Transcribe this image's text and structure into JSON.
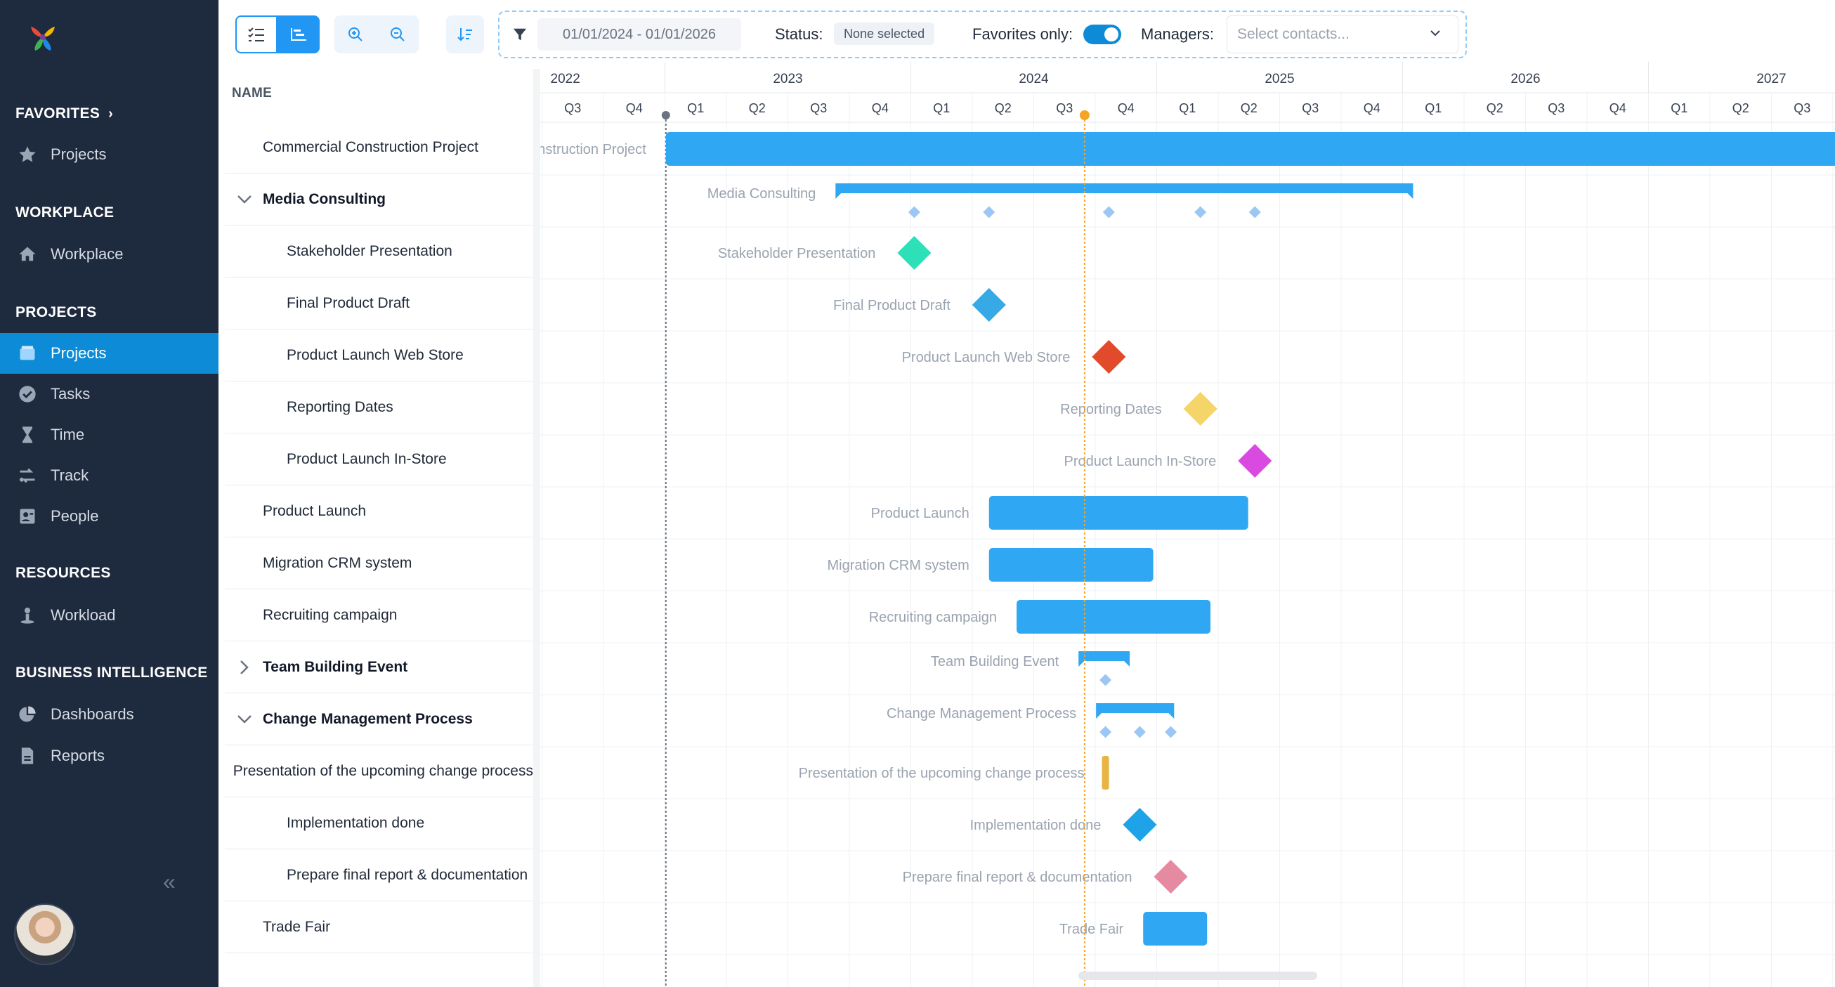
{
  "sidebar": {
    "sections": [
      {
        "title": "FAVORITES",
        "items": [
          {
            "label": "Projects",
            "icon": "star-icon"
          }
        ]
      },
      {
        "title": "WORKPLACE",
        "items": [
          {
            "label": "Workplace",
            "icon": "home-icon"
          }
        ]
      },
      {
        "title": "PROJECTS",
        "items": [
          {
            "label": "Projects",
            "icon": "folder-icon",
            "active": true
          },
          {
            "label": "Tasks",
            "icon": "check-circle-icon"
          },
          {
            "label": "Time",
            "icon": "hourglass-icon"
          },
          {
            "label": "Track",
            "icon": "track-icon"
          },
          {
            "label": "People",
            "icon": "contact-card-icon"
          }
        ]
      },
      {
        "title": "RESOURCES",
        "items": [
          {
            "label": "Workload",
            "icon": "workload-icon"
          }
        ]
      },
      {
        "title": "BUSINESS INTELLIGENCE",
        "items": [
          {
            "label": "Dashboards",
            "icon": "pie-chart-icon"
          },
          {
            "label": "Reports",
            "icon": "report-icon"
          }
        ]
      }
    ],
    "collapse_glyph": "«"
  },
  "toolbar": {
    "date_range": "01/01/2024 - 01/01/2026",
    "status_label": "Status:",
    "status_value": "None selected",
    "favorites_label": "Favorites only:",
    "favorites_only": true,
    "managers_label": "Managers:",
    "managers_placeholder": "Select contacts..."
  },
  "grid": {
    "name_header": "NAME",
    "rows": [
      {
        "name": "Commercial Construction Project",
        "level": 0,
        "toggle": ""
      },
      {
        "name": "Media Consulting",
        "level": 0,
        "toggle": "expanded",
        "bold": true
      },
      {
        "name": "Stakeholder Presentation",
        "level": 1,
        "toggle": ""
      },
      {
        "name": "Final Product Draft",
        "level": 1,
        "toggle": ""
      },
      {
        "name": "Product Launch Web Store",
        "level": 1,
        "toggle": ""
      },
      {
        "name": "Reporting Dates",
        "level": 1,
        "toggle": ""
      },
      {
        "name": "Product Launch In-Store",
        "level": 1,
        "toggle": ""
      },
      {
        "name": "Product Launch",
        "level": 0,
        "toggle": ""
      },
      {
        "name": "Migration CRM system",
        "level": 0,
        "toggle": ""
      },
      {
        "name": "Recruiting campaign",
        "level": 0,
        "toggle": ""
      },
      {
        "name": "Team Building Event",
        "level": 0,
        "toggle": "collapsed",
        "bold": true
      },
      {
        "name": "Change Management Process",
        "level": 0,
        "toggle": "expanded",
        "bold": true
      },
      {
        "name": "Presentation of the upcoming change process",
        "level": 1,
        "toggle": ""
      },
      {
        "name": "Implementation done",
        "level": 1,
        "toggle": ""
      },
      {
        "name": "Prepare final report & documentation",
        "level": 1,
        "toggle": ""
      },
      {
        "name": "Trade Fair",
        "level": 0,
        "toggle": ""
      }
    ]
  },
  "timeline": {
    "years": [
      {
        "label": "2022",
        "first_q": 3
      },
      {
        "label": "2023",
        "first_q": 1
      },
      {
        "label": "2024",
        "first_q": 1
      },
      {
        "label": "2025",
        "first_q": 1
      },
      {
        "label": "2026",
        "first_q": 1
      },
      {
        "label": "2027",
        "first_q": 1
      }
    ],
    "quarter_labels": [
      "Q3",
      "Q4",
      "Q1",
      "Q2",
      "Q3",
      "Q4",
      "Q1",
      "Q2",
      "Q3",
      "Q4",
      "Q1",
      "Q2",
      "Q3",
      "Q4",
      "Q1",
      "Q2",
      "Q3",
      "Q4",
      "Q1",
      "Q2",
      "Q3"
    ],
    "start_marker": "2023-01-01",
    "today_marker": "2024-09-14",
    "colors": {
      "bar": "#2fa7f3",
      "today": "#f5a524",
      "label": "#9aa3af"
    },
    "items": [
      {
        "row": 0,
        "type": "bar",
        "label": "Commercial Construction Project",
        "start": "2023-01-01",
        "end": "2027-12-31"
      },
      {
        "row": 1,
        "type": "summary",
        "label": "Media Consulting",
        "start": "2023-09-10",
        "end": "2026-01-15",
        "markers": [
          "2024-01-05",
          "2024-04-25",
          "2024-10-20",
          "2025-03-05",
          "2025-05-25"
        ]
      },
      {
        "row": 2,
        "type": "milestone",
        "label": "Stakeholder Presentation",
        "date": "2024-01-05",
        "color": "#2ee0b7"
      },
      {
        "row": 3,
        "type": "milestone",
        "label": "Final Product Draft",
        "date": "2024-04-25",
        "color": "#37aae6"
      },
      {
        "row": 4,
        "type": "milestone",
        "label": "Product Launch Web Store",
        "date": "2024-10-20",
        "color": "#e14a2b"
      },
      {
        "row": 5,
        "type": "milestone",
        "label": "Reporting Dates",
        "date": "2025-03-05",
        "color": "#f5d46a"
      },
      {
        "row": 6,
        "type": "milestone",
        "label": "Product Launch In-Store",
        "date": "2025-05-25",
        "color": "#d94be0"
      },
      {
        "row": 7,
        "type": "bar",
        "label": "Product Launch",
        "start": "2024-04-25",
        "end": "2025-05-15"
      },
      {
        "row": 8,
        "type": "bar",
        "label": "Migration CRM system",
        "start": "2024-04-25",
        "end": "2024-12-25"
      },
      {
        "row": 9,
        "type": "bar",
        "label": "Recruiting campaign",
        "start": "2024-06-05",
        "end": "2025-03-20"
      },
      {
        "row": 10,
        "type": "summary",
        "label": "Team Building Event",
        "start": "2024-09-05",
        "end": "2024-11-20",
        "markers": [
          "2024-10-15"
        ]
      },
      {
        "row": 11,
        "type": "summary",
        "label": "Change Management Process",
        "start": "2024-10-01",
        "end": "2025-01-25",
        "markers": [
          "2024-10-15",
          "2024-12-05",
          "2025-01-20"
        ]
      },
      {
        "row": 12,
        "type": "tick",
        "label": "Presentation of the upcoming change process",
        "date": "2024-10-15",
        "color": "#e8b444"
      },
      {
        "row": 13,
        "type": "milestone",
        "label": "Implementation done",
        "date": "2024-12-05",
        "color": "#1ea3e8"
      },
      {
        "row": 14,
        "type": "milestone",
        "label": "Prepare final report & documentation",
        "date": "2025-01-20",
        "color": "#e58aa0"
      },
      {
        "row": 15,
        "type": "bar",
        "label": "Trade Fair",
        "start": "2024-12-10",
        "end": "2025-03-15"
      }
    ]
  }
}
